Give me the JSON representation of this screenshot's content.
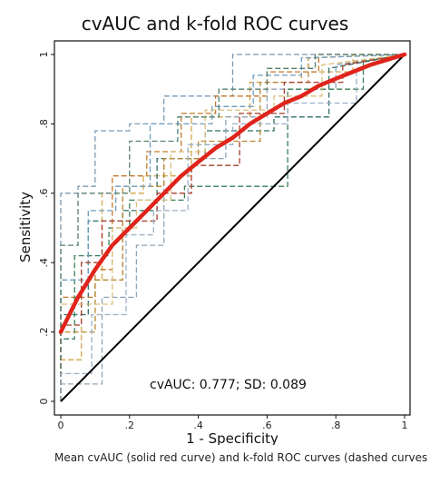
{
  "chart_data": {
    "type": "line",
    "title": "cvAUC and k-fold ROC curves",
    "xlabel": "1 - Specificity",
    "ylabel": "Sensitivity",
    "xlim": [
      0,
      1
    ],
    "ylim": [
      0,
      1
    ],
    "x_ticks": [
      "0",
      ".2",
      ".4",
      ".6",
      ".8",
      "1"
    ],
    "y_ticks": [
      "0",
      ".2",
      ".4",
      ".6",
      ".8",
      "1"
    ],
    "grid": true,
    "annotation": "cvAUC: 0.777; SD: 0.089",
    "caption": "Mean cvAUC (solid red curve) and k-fold ROC curves (dashed curves –",
    "colors": {
      "mean_curve": "#e0241b",
      "reference_line": "#000000",
      "folds": [
        "#d4a548",
        "#2f6f6a",
        "#7a9ab3",
        "#c27a2c",
        "#8fa5b5",
        "#3b7f58",
        "#b5862e",
        "#6f9dc0",
        "#a83c2c",
        "#d9c07a",
        "#56806e",
        "#9bb0c7"
      ]
    },
    "series": [
      {
        "x": [
          0,
          0.02,
          0.05,
          0.1,
          0.15,
          0.2,
          0.25,
          0.3,
          0.35,
          0.4,
          0.45,
          0.5,
          0.55,
          0.6,
          0.65,
          0.7,
          0.75,
          0.8,
          0.85,
          0.9,
          0.95,
          1
        ],
        "y": [
          0.2,
          0.24,
          0.3,
          0.38,
          0.45,
          0.5,
          0.55,
          0.6,
          0.65,
          0.69,
          0.73,
          0.76,
          0.8,
          0.83,
          0.86,
          0.88,
          0.91,
          0.93,
          0.95,
          0.97,
          0.985,
          1
        ]
      },
      {
        "x": [
          0,
          0,
          0.06,
          0.06,
          0.12,
          0.12,
          0.24,
          0.24,
          0.38,
          0.38,
          0.55,
          0.55,
          0.7,
          0.7,
          0.85,
          0.85,
          1
        ],
        "y": [
          0,
          0.12,
          0.12,
          0.35,
          0.35,
          0.6,
          0.6,
          0.65,
          0.65,
          0.82,
          0.82,
          0.92,
          0.92,
          0.95,
          0.95,
          1,
          1
        ]
      },
      {
        "x": [
          0,
          0,
          0.08,
          0.08,
          0.18,
          0.18,
          0.28,
          0.28,
          0.42,
          0.42,
          0.62,
          0.62,
          0.78,
          0.78,
          1
        ],
        "y": [
          0,
          0.25,
          0.25,
          0.52,
          0.52,
          0.55,
          0.55,
          0.7,
          0.7,
          0.78,
          0.78,
          0.82,
          0.82,
          0.96,
          1
        ]
      },
      {
        "x": [
          0,
          0,
          0.05,
          0.05,
          0.1,
          0.1,
          0.2,
          0.2,
          0.3,
          0.3,
          0.5,
          0.5,
          0.7,
          0.7,
          1
        ],
        "y": [
          0,
          0.6,
          0.6,
          0.62,
          0.62,
          0.78,
          0.78,
          0.8,
          0.8,
          0.88,
          0.88,
          1,
          1,
          1,
          1
        ]
      },
      {
        "x": [
          0,
          0,
          0.1,
          0.1,
          0.15,
          0.15,
          0.25,
          0.25,
          0.35,
          0.35,
          0.45,
          0.45,
          0.6,
          0.6,
          0.75,
          0.75,
          1
        ],
        "y": [
          0,
          0.3,
          0.3,
          0.38,
          0.38,
          0.65,
          0.65,
          0.72,
          0.72,
          0.83,
          0.83,
          0.88,
          0.88,
          0.95,
          0.95,
          1,
          1
        ]
      },
      {
        "x": [
          0,
          0,
          0.12,
          0.12,
          0.22,
          0.22,
          0.3,
          0.3,
          0.48,
          0.48,
          0.6,
          0.6,
          0.8,
          0.8,
          1
        ],
        "y": [
          0,
          0.05,
          0.05,
          0.3,
          0.3,
          0.45,
          0.45,
          0.7,
          0.7,
          0.82,
          0.82,
          0.9,
          0.9,
          0.97,
          1
        ]
      },
      {
        "x": [
          0,
          0,
          0.04,
          0.04,
          0.14,
          0.14,
          0.2,
          0.2,
          0.36,
          0.36,
          0.5,
          0.5,
          0.66,
          0.66,
          0.88,
          0.88,
          1
        ],
        "y": [
          0,
          0.18,
          0.18,
          0.42,
          0.42,
          0.5,
          0.5,
          0.58,
          0.58,
          0.62,
          0.62,
          0.62,
          0.62,
          0.9,
          0.9,
          0.98,
          1
        ]
      },
      {
        "x": [
          0,
          0,
          0.1,
          0.1,
          0.18,
          0.18,
          0.3,
          0.3,
          0.4,
          0.4,
          0.58,
          0.58,
          0.72,
          0.72,
          1
        ],
        "y": [
          0,
          0.2,
          0.2,
          0.35,
          0.35,
          0.62,
          0.62,
          0.7,
          0.7,
          0.75,
          0.75,
          0.92,
          0.92,
          0.99,
          1
        ]
      },
      {
        "x": [
          0,
          0,
          0.08,
          0.08,
          0.16,
          0.16,
          0.26,
          0.26,
          0.44,
          0.44,
          0.56,
          0.56,
          0.7,
          0.7,
          1
        ],
        "y": [
          0,
          0.35,
          0.35,
          0.55,
          0.55,
          0.62,
          0.62,
          0.8,
          0.8,
          0.85,
          0.85,
          0.94,
          0.94,
          0.99,
          1
        ]
      },
      {
        "x": [
          0,
          0,
          0.06,
          0.06,
          0.12,
          0.12,
          0.28,
          0.28,
          0.38,
          0.38,
          0.52,
          0.52,
          0.65,
          0.65,
          0.82,
          0.82,
          1
        ],
        "y": [
          0,
          0.22,
          0.22,
          0.4,
          0.4,
          0.52,
          0.52,
          0.6,
          0.6,
          0.68,
          0.68,
          0.83,
          0.83,
          0.92,
          0.92,
          0.97,
          1
        ]
      },
      {
        "x": [
          0,
          0,
          0.15,
          0.15,
          0.22,
          0.22,
          0.32,
          0.32,
          0.42,
          0.42,
          0.62,
          0.62,
          0.76,
          0.76,
          1
        ],
        "y": [
          0,
          0.28,
          0.28,
          0.5,
          0.5,
          0.58,
          0.58,
          0.72,
          0.72,
          0.84,
          0.84,
          0.88,
          0.88,
          0.97,
          1
        ]
      },
      {
        "x": [
          0,
          0,
          0.05,
          0.05,
          0.2,
          0.2,
          0.34,
          0.34,
          0.46,
          0.46,
          0.6,
          0.6,
          0.74,
          0.74,
          0.9,
          0.9,
          1
        ],
        "y": [
          0,
          0.45,
          0.45,
          0.6,
          0.6,
          0.75,
          0.75,
          0.82,
          0.82,
          0.9,
          0.9,
          0.96,
          0.96,
          1,
          1,
          1,
          1
        ]
      },
      {
        "x": [
          0,
          0,
          0.09,
          0.09,
          0.19,
          0.19,
          0.27,
          0.27,
          0.37,
          0.37,
          0.5,
          0.5,
          0.66,
          0.66,
          0.86,
          0.86,
          1
        ],
        "y": [
          0,
          0.08,
          0.08,
          0.25,
          0.25,
          0.48,
          0.48,
          0.55,
          0.55,
          0.74,
          0.74,
          0.8,
          0.8,
          0.86,
          0.86,
          0.96,
          1
        ]
      }
    ]
  }
}
